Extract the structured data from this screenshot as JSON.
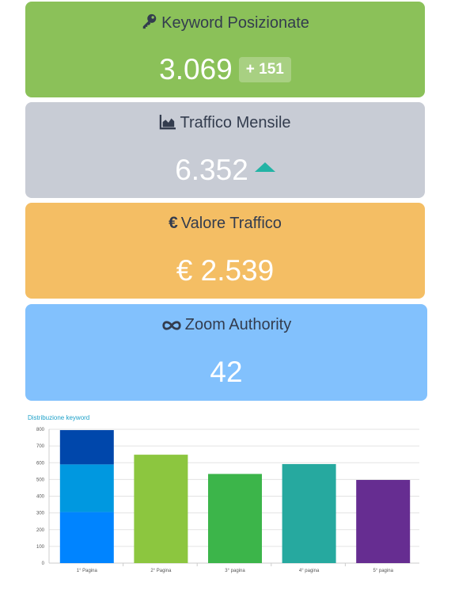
{
  "cards": {
    "keywords": {
      "title": "Keyword Posizionate",
      "value": "3.069",
      "delta": "+ 151",
      "icon": "key-icon"
    },
    "traffic": {
      "title": "Traffico Mensile",
      "value": "6.352",
      "trend": "up",
      "icon": "area-chart-icon",
      "trend_color": "#23b3a5"
    },
    "value": {
      "title": "Valore Traffico",
      "value": "€ 2.539",
      "icon": "euro-icon"
    },
    "authority": {
      "title": "Zoom Authority",
      "value": "42",
      "icon": "infinity-icon"
    }
  },
  "colors": {
    "keywords_bg": "#8bc159",
    "traffic_bg": "#c8ccd5",
    "value_bg": "#f4be64",
    "authority_bg": "#82c1fd"
  },
  "chart": {
    "title": "Distribuzione keyword"
  },
  "chart_data": {
    "type": "bar",
    "stacked": true,
    "categories": [
      "1° Pagina",
      "2° Pagina",
      "3° pagina",
      "4° pagina",
      "5° pagina"
    ],
    "stack_segments": [
      {
        "category": "1° Pagina",
        "values": [
          305,
          285,
          205
        ],
        "colors": [
          "#0084ff",
          "#0098e0",
          "#0047ab"
        ]
      }
    ],
    "values": [
      795,
      648,
      533,
      592,
      497
    ],
    "colors": [
      "#0047ab",
      "#8cc63f",
      "#3cb54a",
      "#26a99f",
      "#662d91"
    ],
    "ylim": [
      0,
      800
    ],
    "yticks": [
      0,
      100,
      200,
      300,
      400,
      500,
      600,
      700,
      800
    ],
    "grid": true,
    "xlabel": "",
    "ylabel": ""
  }
}
